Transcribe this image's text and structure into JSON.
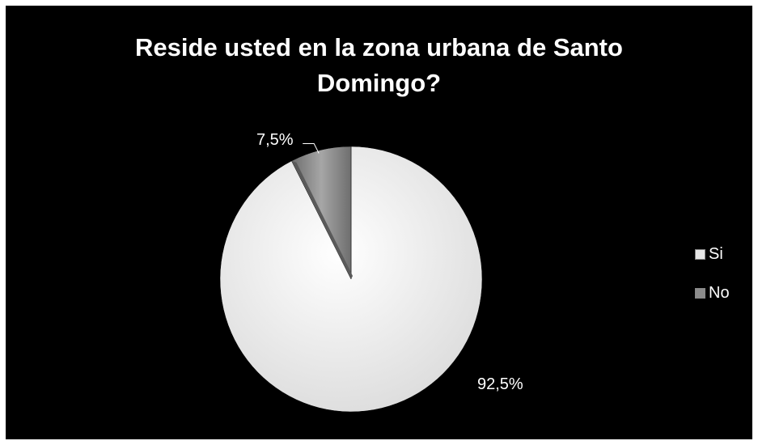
{
  "chart_data": {
    "type": "pie",
    "title": "Reside usted en la zona urbana de Santo Domingo?",
    "title_lines": [
      "Reside usted en la zona urbana de Santo",
      "Domingo?"
    ],
    "categories": [
      "Si",
      "No"
    ],
    "values": [
      92.5,
      7.5
    ],
    "data_labels": [
      "92,5%",
      "7,5%"
    ],
    "colors": [
      "#f2f2f2",
      "#8c8c8c"
    ],
    "legend_position": "right"
  }
}
